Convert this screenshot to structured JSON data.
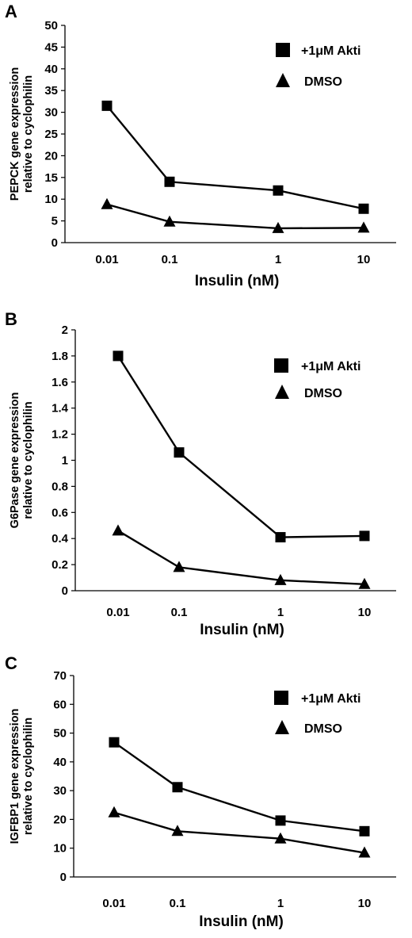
{
  "chart_data": [
    {
      "type": "line",
      "panel": "A",
      "categories": [
        "0.01",
        "0.1",
        "1",
        "10"
      ],
      "xlabel": "Insulin (nM)",
      "ylabel": [
        "PEPCK gene expression",
        "relative to cyclophilin"
      ],
      "ylim": [
        0,
        50
      ],
      "yticks": [
        "0",
        "5",
        "10",
        "15",
        "20",
        "25",
        "30",
        "35",
        "40",
        "45",
        "50"
      ],
      "grid": false,
      "legend_position": "top-right",
      "series": [
        {
          "name": "+1μM Akti",
          "marker": "square",
          "values": [
            31.5,
            14,
            12,
            7.8
          ]
        },
        {
          "name": "DMSO",
          "marker": "triangle",
          "values": [
            8.8,
            4.8,
            3.3,
            3.4
          ]
        }
      ]
    },
    {
      "type": "line",
      "panel": "B",
      "categories": [
        "0.01",
        "0.1",
        "1",
        "10"
      ],
      "xlabel": "Insulin (nM)",
      "ylabel": [
        "G6Pase gene expression",
        "relative to cyclophilin"
      ],
      "ylim": [
        0,
        2
      ],
      "yticks": [
        "0",
        "0.2",
        "0.4",
        "0.6",
        "0.8",
        "1",
        "1.2",
        "1.4",
        "1.6",
        "1.8",
        "2"
      ],
      "grid": false,
      "legend_position": "top-right",
      "series": [
        {
          "name": "+1μM Akti",
          "marker": "square",
          "values": [
            1.8,
            1.06,
            0.41,
            0.42
          ]
        },
        {
          "name": "DMSO",
          "marker": "triangle",
          "values": [
            0.46,
            0.18,
            0.08,
            0.05
          ]
        }
      ]
    },
    {
      "type": "line",
      "panel": "C",
      "categories": [
        "0.01",
        "0.1",
        "1",
        "10"
      ],
      "xlabel": "Insulin (nM)",
      "ylabel": [
        "IGFBP1 gene expression",
        "relative to cyclophilin"
      ],
      "ylim": [
        0,
        70
      ],
      "yticks": [
        "0",
        "10",
        "20",
        "30",
        "40",
        "50",
        "60",
        "70"
      ],
      "grid": false,
      "legend_position": "top-right",
      "series": [
        {
          "name": "+1μM Akti",
          "marker": "square",
          "values": [
            46.8,
            31.2,
            19.6,
            15.9
          ]
        },
        {
          "name": "DMSO",
          "marker": "triangle",
          "values": [
            22.4,
            15.9,
            13.3,
            8.4
          ]
        }
      ]
    }
  ],
  "colors": {
    "line": "#000000",
    "marker": "#000000",
    "background": "#ffffff"
  }
}
